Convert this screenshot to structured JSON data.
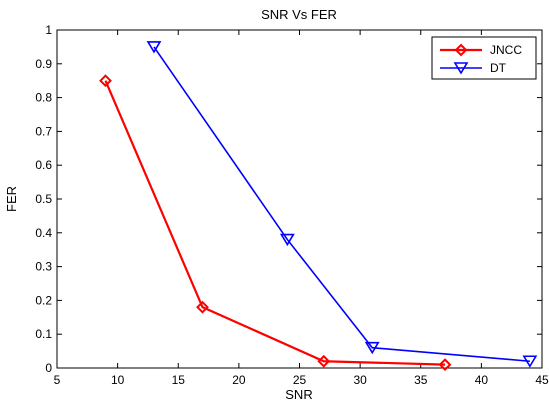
{
  "chart_data": {
    "type": "line",
    "title": "SNR Vs FER",
    "xlabel": "SNR",
    "ylabel": "FER",
    "xlim": [
      5,
      45
    ],
    "ylim": [
      0,
      1
    ],
    "xticks": [
      5,
      10,
      15,
      20,
      25,
      30,
      35,
      40,
      45
    ],
    "yticks": [
      0,
      0.1,
      0.2,
      0.3,
      0.4,
      0.5,
      0.6,
      0.7,
      0.8,
      0.9,
      1
    ],
    "grid": false,
    "legend_position": "top-right",
    "series": [
      {
        "name": "JNCC",
        "color": "#ff0000",
        "marker": "diamond",
        "x": [
          9,
          17,
          27,
          37
        ],
        "y": [
          0.85,
          0.18,
          0.02,
          0.01
        ]
      },
      {
        "name": "DT",
        "color": "#0000ff",
        "marker": "triangle-down",
        "x": [
          13,
          24,
          31,
          44
        ],
        "y": [
          0.95,
          0.38,
          0.06,
          0.02
        ]
      }
    ]
  }
}
